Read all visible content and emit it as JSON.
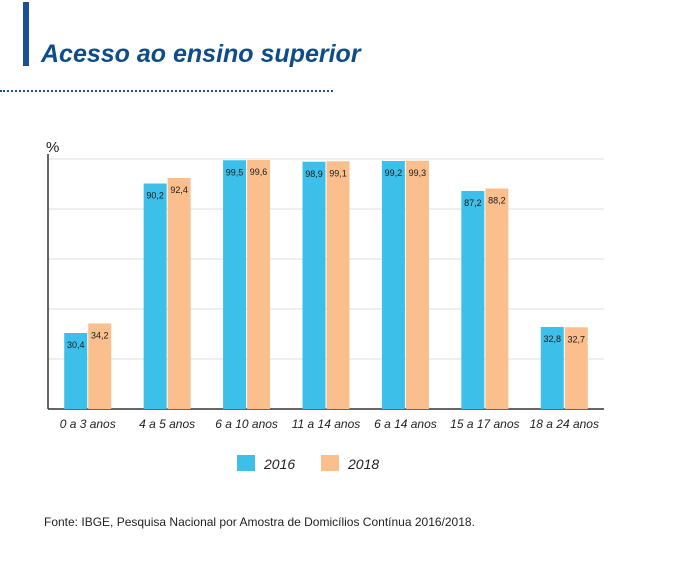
{
  "header": {
    "title": "Acesso ao ensino superior",
    "title_color": "#0f4c8a",
    "accent_color": "#1a4f96",
    "rule_color": "#1a4f96"
  },
  "footer": {
    "source": "Fonte: IBGE, Pesquisa Nacional por Amostra de Domicílios Contínua 2016/2018."
  },
  "chart_data": {
    "type": "bar",
    "title": "",
    "ylabel": "%",
    "xlabel": "",
    "ylim": [
      0,
      100
    ],
    "grid": true,
    "legend_position": "bottom-center",
    "categories": [
      "0 a 3 anos",
      "4 a 5 anos",
      "6 a 10 anos",
      "11 a 14 anos",
      "6 a 14 anos",
      "15 a 17 anos",
      "18 a 24 anos"
    ],
    "series": [
      {
        "name": "2016",
        "color": "#3cbfe9",
        "values": [
          30.4,
          90.2,
          99.5,
          98.9,
          99.2,
          87.2,
          32.8
        ],
        "labels": [
          "30,4",
          "90,2",
          "99,5",
          "98,9",
          "99,2",
          "87,2",
          "32,8"
        ]
      },
      {
        "name": "2018",
        "color": "#fbbf8e",
        "values": [
          34.2,
          92.4,
          99.6,
          99.1,
          99.3,
          88.2,
          32.7
        ],
        "labels": [
          "34,2",
          "92,4",
          "99,6",
          "99,1",
          "99,3",
          "88,2",
          "32,7"
        ]
      }
    ]
  }
}
